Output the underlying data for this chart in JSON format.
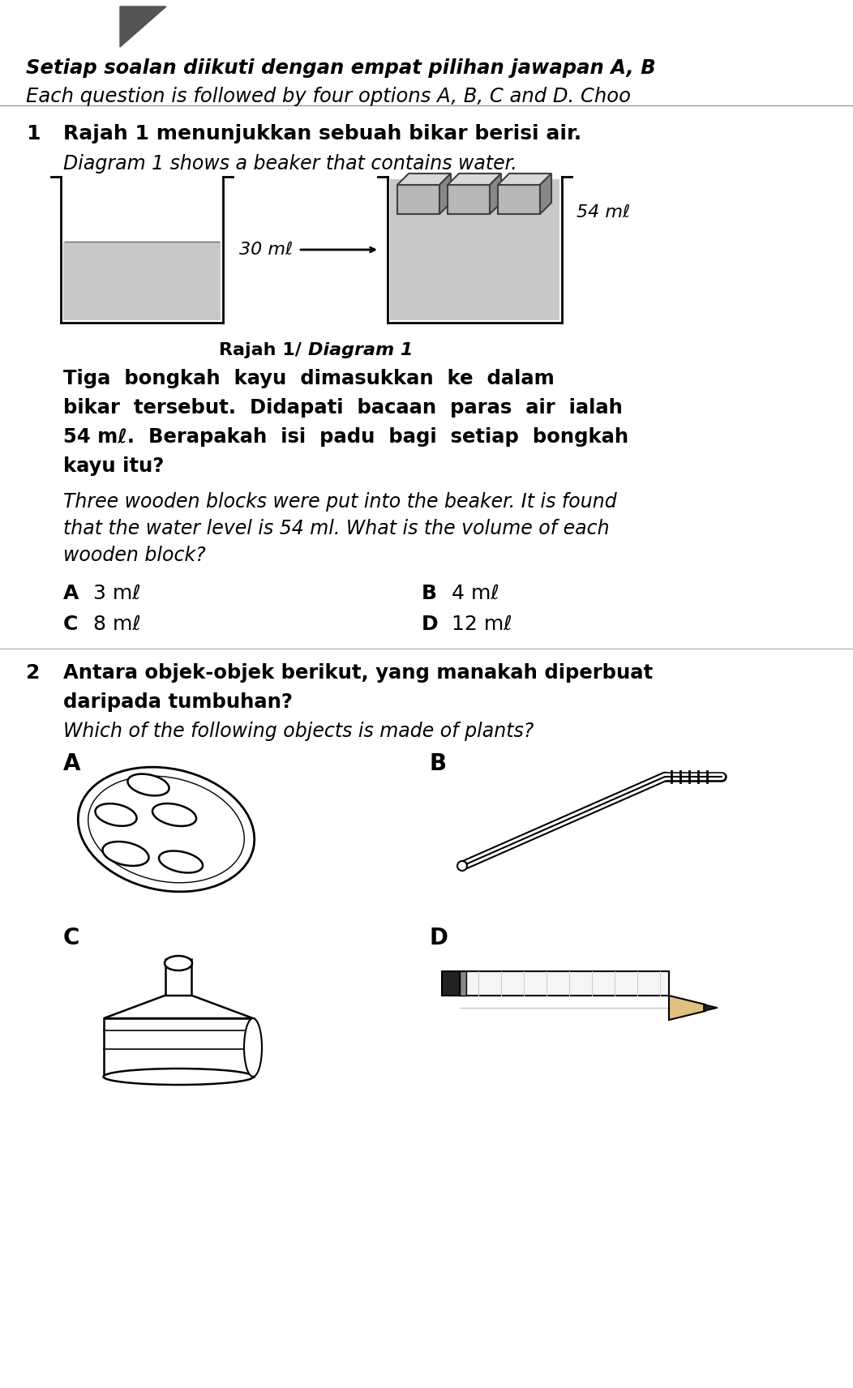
{
  "background_color": "#ffffff",
  "header_line1": "Setiap soalan diikuti dengan empat pilihan jawapan A, B",
  "header_line2": "Each question is followed by four options A, B, C and D. Choo",
  "q1_num": "1",
  "q1_text_ms": "Rajah 1 menunjukkan sebuah bikar berisi air.",
  "q1_text_en": "Diagram 1 shows a beaker that contains water.",
  "q1_label_left": "30 mℓ",
  "q1_label_right": "54 mℓ",
  "q1_caption_bold": "Rajah 1/",
  "q1_caption_italic": " Diagram 1",
  "q1_body_ms_lines": [
    "Tiga  bongkah  kayu  dimasukkan  ke  dalam",
    "bikar  tersebut.  Didapati  bacaan  paras  air  ialah",
    "54 mℓ.  Berapakah  isi  padu  bagi  setiap  bongkah",
    "kayu itu?"
  ],
  "q1_body_en_lines": [
    "Three wooden blocks were put into the beaker. It is found",
    "that the water level is 54 ml. What is the volume of each",
    "wooden block?"
  ],
  "q1_optA_letter": "A",
  "q1_optA_val": "3 mℓ",
  "q1_optB_letter": "B",
  "q1_optB_val": "4 mℓ",
  "q1_optC_letter": "C",
  "q1_optC_val": "8 mℓ",
  "q1_optD_letter": "D",
  "q1_optD_val": "12 mℓ",
  "q2_num": "2",
  "q2_text_ms_lines": [
    "Antara objek-objek berikut, yang manakah diperbuat",
    "daripada tumbuhan?"
  ],
  "q2_text_en": "Which of the following objects is made of plants?",
  "q2_optA": "A",
  "q2_optB": "B",
  "q2_optC": "C",
  "q2_optD": "D",
  "colors": {
    "text": "#000000",
    "water_fill": "#c8c8c8",
    "block_face": "#b0b0b0",
    "block_top": "#d8d8d8",
    "block_side": "#888888"
  },
  "fig_width": 10.52,
  "fig_height": 17.12,
  "dpi": 100
}
